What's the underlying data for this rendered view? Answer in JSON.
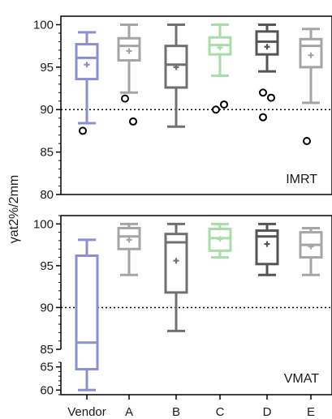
{
  "chart_data": [
    {
      "type": "boxplot",
      "panel_label": "IMRT",
      "ylabel": "γat2%/2mm",
      "ylim": [
        80,
        101
      ],
      "yticks": [
        "80",
        "85",
        "90",
        "95",
        "100"
      ],
      "reference_line": 90,
      "categories": [
        "Vendor",
        "A",
        "B",
        "C",
        "D",
        "E"
      ],
      "colors": [
        "#8c8fd0",
        "#a5a5a5",
        "#707070",
        "#a8dca8",
        "#555555",
        "#a5a5a5"
      ],
      "boxes": [
        {
          "category": "Vendor",
          "whisker_low": 88.4,
          "q1": 93.6,
          "median": 96.1,
          "q3": 97.7,
          "whisker_high": 99.1,
          "mean": 95.3,
          "outliers": [
            87.5
          ]
        },
        {
          "category": "A",
          "whisker_low": 92.0,
          "q1": 95.8,
          "median": 97.5,
          "q3": 98.4,
          "whisker_high": 100.0,
          "mean": 96.9,
          "outliers": [
            91.3,
            88.6
          ]
        },
        {
          "category": "B",
          "whisker_low": 88.0,
          "q1": 92.6,
          "median": 95.3,
          "q3": 97.5,
          "whisker_high": 100.0,
          "mean": 95.0,
          "outliers": []
        },
        {
          "category": "C",
          "whisker_low": 94.0,
          "q1": 96.5,
          "median": 97.6,
          "q3": 98.5,
          "whisker_high": 100.0,
          "mean": 97.3,
          "outliers": [
            90.0,
            90.6
          ]
        },
        {
          "category": "D",
          "whisker_low": 94.5,
          "q1": 96.5,
          "median": 98.0,
          "q3": 99.2,
          "whisker_high": 100.0,
          "mean": 97.4,
          "outliers": [
            92.0,
            91.4,
            89.1
          ]
        },
        {
          "category": "E",
          "whisker_low": 90.8,
          "q1": 95.0,
          "median": 97.5,
          "q3": 98.3,
          "whisker_high": 99.5,
          "mean": 96.4,
          "outliers": [
            86.3
          ]
        }
      ]
    },
    {
      "type": "boxplot",
      "panel_label": "VMAT",
      "ylabel": "γat2%/2mm",
      "ylim": [
        59,
        101
      ],
      "axis_break": {
        "lower_segment": [
          59,
          66
        ],
        "upper_segment": [
          85,
          101
        ]
      },
      "yticks": [
        "60",
        "65",
        "85",
        "90",
        "95",
        "100"
      ],
      "reference_line": 90,
      "categories": [
        "Vendor",
        "A",
        "B",
        "C",
        "D",
        "E"
      ],
      "colors": [
        "#8c8fd0",
        "#a5a5a5",
        "#707070",
        "#a8dca8",
        "#555555",
        "#a5a5a5"
      ],
      "boxes": [
        {
          "category": "Vendor",
          "whisker_low": 60.0,
          "q1": 64.5,
          "median": 85.8,
          "q3": 96.2,
          "whisker_high": 98.1,
          "mean": null,
          "outliers": []
        },
        {
          "category": "A",
          "whisker_low": 93.9,
          "q1": 97.0,
          "median": 98.5,
          "q3": 99.5,
          "whisker_high": 100.0,
          "mean": 98.1,
          "outliers": []
        },
        {
          "category": "B",
          "whisker_low": 87.2,
          "q1": 91.8,
          "median": 97.8,
          "q3": 98.8,
          "whisker_high": 100.0,
          "mean": 95.6,
          "outliers": []
        },
        {
          "category": "C",
          "whisker_low": 96.0,
          "q1": 96.8,
          "median": 98.3,
          "q3": 99.4,
          "whisker_high": 100.0,
          "mean": 98.2,
          "outliers": []
        },
        {
          "category": "D",
          "whisker_low": 93.9,
          "q1": 95.2,
          "median": 98.5,
          "q3": 99.2,
          "whisker_high": 100.0,
          "mean": 97.6,
          "outliers": []
        },
        {
          "category": "E",
          "whisker_low": 93.9,
          "q1": 96.0,
          "median": 97.5,
          "q3": 99.0,
          "whisker_high": 99.5,
          "mean": 97.3,
          "outliers": []
        }
      ]
    }
  ]
}
